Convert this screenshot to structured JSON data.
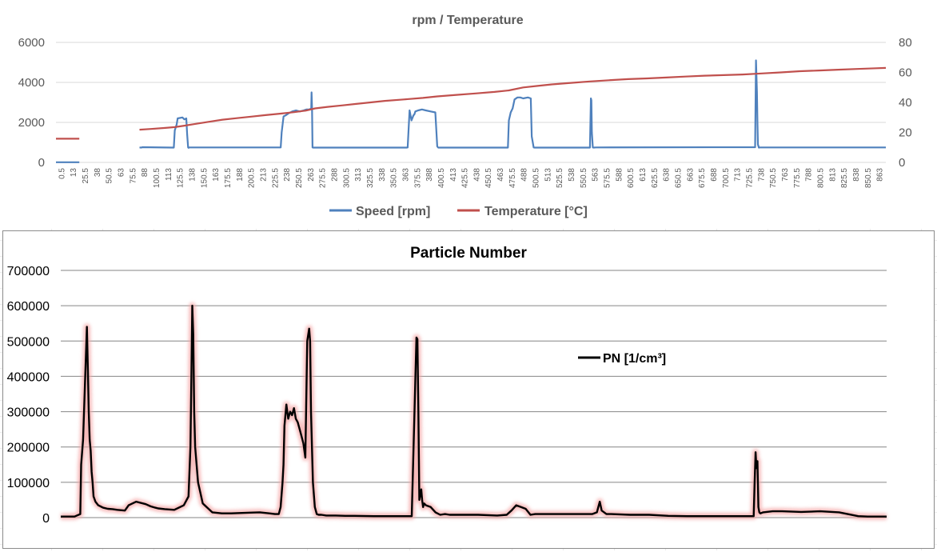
{
  "chart_data": [
    {
      "type": "line",
      "title": "rpm / Temperature",
      "x_tick_labels": [
        "0.5",
        "13",
        "25.5",
        "38",
        "50.5",
        "63",
        "75.5",
        "88",
        "100.5",
        "113",
        "125.5",
        "138",
        "150.5",
        "163",
        "175.5",
        "188",
        "200.5",
        "213",
        "225.5",
        "238",
        "250.5",
        "263",
        "275.5",
        "288",
        "300.5",
        "313",
        "325.5",
        "338",
        "350.5",
        "363",
        "375.5",
        "388",
        "400.5",
        "413",
        "425.5",
        "438",
        "450.5",
        "463",
        "475.5",
        "488",
        "500.5",
        "513",
        "525.5",
        "538",
        "550.5",
        "563",
        "575.5",
        "588",
        "600.5",
        "613",
        "625.5",
        "638",
        "650.5",
        "663",
        "675.5",
        "688",
        "700.5",
        "713",
        "725.5",
        "738",
        "750.5",
        "763",
        "775.5",
        "788",
        "800.5",
        "813",
        "825.5",
        "838",
        "850.5",
        "863"
      ],
      "xlim": [
        0.5,
        870
      ],
      "y_left": {
        "ticks": [
          "0",
          "2000",
          "4000",
          "6000"
        ],
        "ylim": [
          0,
          6000
        ]
      },
      "y_right": {
        "ticks": [
          "0",
          "20",
          "40",
          "60",
          "80"
        ],
        "ylim": [
          0,
          80
        ]
      },
      "legend_position": "bottom",
      "series": [
        {
          "name": "Speed [rpm]",
          "axis": "left",
          "color": "#4f81bd",
          "x": [
            0.5,
            25,
            25.01,
            88,
            88.01,
            90,
            91,
            124,
            125,
            127,
            128,
            133,
            134,
            135,
            137,
            138,
            139,
            139.5,
            140,
            236,
            237,
            239,
            241,
            244,
            248,
            252,
            256,
            260,
            263,
            266,
            268,
            268.3,
            268.8,
            269.3,
            270,
            368,
            369,
            371,
            373,
            375,
            376,
            377,
            380,
            384,
            388,
            393,
            398,
            400,
            401,
            474,
            475,
            477,
            479,
            481,
            484,
            487,
            490,
            495,
            498,
            499,
            501,
            502,
            560,
            561,
            561.5,
            562,
            563,
            564,
            566,
            733,
            734,
            735,
            735.5,
            736,
            737,
            738,
            740,
            870
          ],
          "y": [
            10,
            10,
            null,
            null,
            750,
            740,
            760,
            740,
            1600,
            1900,
            2200,
            2250,
            2200,
            2150,
            2200,
            1400,
            750,
            730,
            750,
            750,
            1500,
            2300,
            2350,
            2450,
            2550,
            2600,
            2550,
            2600,
            2650,
            2650,
            2700,
            3500,
            2700,
            750,
            740,
            740,
            750,
            2600,
            2100,
            2350,
            2400,
            2550,
            2600,
            2650,
            2600,
            2550,
            2500,
            800,
            740,
            740,
            2100,
            2500,
            2700,
            3150,
            3250,
            3250,
            3200,
            3250,
            3200,
            1300,
            750,
            740,
            740,
            3200,
            3100,
            1500,
            750,
            740,
            750,
            760,
            5100,
            3500,
            2000,
            900,
            740,
            750,
            750,
            750
          ]
        },
        {
          "name": "Temperature [°C]",
          "axis": "right",
          "color": "#c0504d",
          "x": [
            0.5,
            25,
            25.01,
            88,
            88.01,
            100,
            115,
            125,
            135,
            145,
            155,
            165,
            175,
            190,
            205,
            220,
            235,
            250,
            262,
            272,
            285,
            300,
            315,
            330,
            345,
            365,
            385,
            400,
            420,
            440,
            460,
            475,
            490,
            505,
            520,
            540,
            560,
            580,
            600,
            620,
            640,
            660,
            680,
            700,
            720,
            740,
            760,
            780,
            800,
            820,
            840,
            860,
            870
          ],
          "y": [
            15.8,
            15.8,
            null,
            null,
            21.8,
            22.3,
            23,
            23.5,
            24.5,
            25.5,
            26.5,
            27.5,
            28.5,
            29.5,
            30.5,
            31.5,
            32.5,
            33.5,
            34.5,
            36,
            37,
            38,
            39,
            40,
            41,
            42,
            43,
            44,
            45,
            46,
            47,
            48,
            50,
            51,
            52,
            53,
            54,
            54.8,
            55.5,
            56,
            56.6,
            57.2,
            57.8,
            58.2,
            58.6,
            59.3,
            60,
            60.8,
            61.3,
            61.8,
            62.3,
            62.8,
            63
          ]
        }
      ]
    },
    {
      "type": "line",
      "title": "Particle Number",
      "y_ticks": [
        "0",
        "100000",
        "200000",
        "300000",
        "400000",
        "500000",
        "600000",
        "700000"
      ],
      "ylim": [
        0,
        700000
      ],
      "xlim": [
        0.5,
        870
      ],
      "legend_position": "inside-upper-right",
      "series": [
        {
          "name": "PN [1/cm³]",
          "color": "#000000",
          "glow_color": "#f4a9a9",
          "x": [
            0.5,
            15,
            21,
            22,
            24,
            27,
            28,
            29,
            30,
            31,
            32,
            33,
            34,
            35,
            37,
            40,
            45,
            50,
            55,
            60,
            68,
            72,
            80,
            90,
            95,
            100,
            103,
            110,
            120,
            130,
            135,
            137,
            138,
            139,
            140,
            141,
            142,
            145,
            150,
            160,
            170,
            180,
            200,
            210,
            220,
            226,
            230,
            232,
            234,
            235,
            236,
            238,
            240,
            242,
            244,
            246,
            248,
            250,
            252,
            254,
            256,
            258,
            260,
            262,
            263,
            264,
            266,
            268,
            270,
            272,
            275,
            280,
            290,
            300,
            310,
            330,
            350,
            360,
            370,
            375,
            376,
            377,
            378,
            380,
            381,
            382,
            383,
            385,
            390,
            395,
            400,
            405,
            410,
            420,
            440,
            460,
            470,
            475,
            480,
            485,
            490,
            495,
            500,
            510,
            530,
            550,
            560,
            565,
            568,
            570,
            575,
            580,
            600,
            620,
            640,
            660,
            680,
            700,
            720,
            726,
            730,
            731,
            732,
            733,
            734,
            735,
            736,
            737,
            740,
            750,
            760,
            780,
            800,
            820,
            840,
            850,
            870
          ],
          "y": [
            3000,
            3000,
            10000,
            150000,
            220000,
            460000,
            540000,
            420000,
            300000,
            220000,
            190000,
            130000,
            100000,
            60000,
            45000,
            35000,
            28000,
            25000,
            24000,
            22000,
            20000,
            35000,
            45000,
            38000,
            32000,
            28000,
            26000,
            24000,
            22000,
            35000,
            60000,
            200000,
            400000,
            600000,
            520000,
            300000,
            200000,
            100000,
            40000,
            15000,
            12000,
            12000,
            14000,
            15000,
            12000,
            10000,
            10000,
            30000,
            100000,
            150000,
            260000,
            320000,
            280000,
            300000,
            290000,
            310000,
            280000,
            270000,
            250000,
            230000,
            210000,
            170000,
            500000,
            535000,
            500000,
            300000,
            100000,
            30000,
            10000,
            8000,
            8000,
            6000,
            6000,
            5000,
            5000,
            4000,
            4000,
            4000,
            4000,
            510000,
            505000,
            300000,
            50000,
            80000,
            50000,
            30000,
            40000,
            35000,
            30000,
            15000,
            8000,
            10000,
            8000,
            8000,
            8000,
            6000,
            8000,
            20000,
            35000,
            30000,
            25000,
            8000,
            10000,
            10000,
            10000,
            10000,
            10000,
            15000,
            45000,
            20000,
            10000,
            10000,
            8000,
            8000,
            5000,
            4000,
            4000,
            4000,
            4000,
            4000,
            4000,
            100000,
            185000,
            140000,
            160000,
            30000,
            15000,
            12000,
            15000,
            18000,
            18000,
            16000,
            18000,
            15000,
            4000,
            3000,
            3000
          ]
        }
      ]
    }
  ]
}
